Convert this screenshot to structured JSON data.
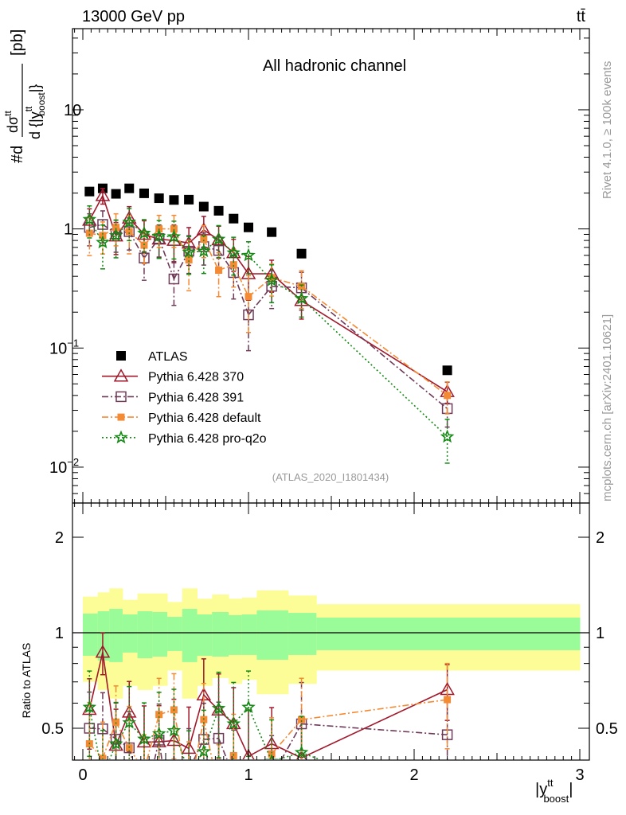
{
  "header": {
    "left": "13000 GeV pp",
    "right": "tt̄"
  },
  "side_labels": {
    "rivet": "Rivet 4.1.0, ≥ 100k events",
    "mcplots": "mcplots.cern.ch [arXiv:2401.10621]"
  },
  "chart_data": {
    "type": "scatter",
    "title": "All hadronic channel",
    "analysis": "(ATLAS_2020_I1801434)",
    "ylabel": {
      "prefix": "#d",
      "num": "dσ",
      "num_sup": "tt",
      "den": "d {|y",
      "den_sup": "tt",
      "den_sub": "boost",
      "den_end": "|}",
      "unit": "[pb]"
    },
    "xlabel": {
      "base": "|y",
      "sup": "tt",
      "sub": "boost",
      "end": "|"
    },
    "xlim": [
      -0.07,
      3.05
    ],
    "ylim": [
      0.005,
      48
    ],
    "yscale": "log",
    "xticks": [
      "0",
      "1",
      "2",
      "3"
    ],
    "yticks": [
      {
        "v": 0.01,
        "base": "10",
        "exp": "−2"
      },
      {
        "v": 0.1,
        "base": "10",
        "exp": "−1"
      },
      {
        "v": 1,
        "base": "1",
        "exp": ""
      },
      {
        "v": 10,
        "base": "10",
        "exp": ""
      }
    ],
    "bin_edges": [
      0,
      0.09,
      0.16,
      0.24,
      0.33,
      0.42,
      0.51,
      0.6,
      0.69,
      0.78,
      0.88,
      0.96,
      1.05,
      1.24,
      1.41,
      3.0
    ],
    "x": [
      0.04,
      0.12,
      0.2,
      0.28,
      0.37,
      0.46,
      0.55,
      0.64,
      0.73,
      0.82,
      0.91,
      1.0,
      1.14,
      1.32,
      2.2
    ],
    "series": [
      {
        "name": "ATLAS",
        "color": "#000000",
        "marker": "square-filled",
        "line": "none",
        "values": [
          2.06,
          2.19,
          1.97,
          2.19,
          1.99,
          1.81,
          1.75,
          1.76,
          1.54,
          1.42,
          1.22,
          1.03,
          0.94,
          0.62,
          0.065
        ]
      },
      {
        "name": "Pythia 6.428 370",
        "color": "#a0182a",
        "marker": "triangle-open",
        "line": "solid",
        "values": [
          1.18,
          1.9,
          0.87,
          1.23,
          0.9,
          0.82,
          0.8,
          0.76,
          0.98,
          0.81,
          0.63,
          0.42,
          0.42,
          0.25,
          0.043
        ],
        "rel_err": [
          0.25,
          0.15,
          0.3,
          0.25,
          0.3,
          0.3,
          0.35,
          0.35,
          0.3,
          0.3,
          0.3,
          0.4,
          0.3,
          0.3,
          0.2
        ]
      },
      {
        "name": "Pythia 6.428 391",
        "color": "#6e3a58",
        "marker": "square-open",
        "line": "dashdot",
        "values": [
          1.03,
          1.09,
          0.91,
          0.95,
          0.57,
          0.83,
          0.38,
          0.65,
          0.71,
          0.66,
          0.43,
          0.19,
          0.33,
          0.32,
          0.031
        ],
        "rel_err": [
          0.3,
          0.3,
          0.3,
          0.3,
          0.35,
          0.3,
          0.4,
          0.35,
          0.3,
          0.3,
          0.4,
          0.5,
          0.35,
          0.35,
          0.3
        ]
      },
      {
        "name": "Pythia 6.428 default",
        "color": "#f58a34",
        "marker": "square-filled-small",
        "line": "dashdot",
        "values": [
          0.92,
          0.88,
          1.03,
          0.95,
          0.73,
          1.0,
          1.0,
          0.55,
          0.82,
          0.45,
          0.5,
          0.27,
          0.39,
          0.33,
          0.04
        ],
        "rel_err": [
          0.35,
          0.3,
          0.3,
          0.35,
          0.3,
          0.3,
          0.3,
          0.45,
          0.3,
          0.4,
          0.35,
          0.5,
          0.3,
          0.35,
          0.3
        ]
      },
      {
        "name": "Pythia 6.428 pro-q2o",
        "color": "#138a13",
        "marker": "star",
        "line": "dotted",
        "values": [
          1.2,
          0.77,
          0.88,
          1.14,
          0.92,
          0.87,
          0.86,
          0.64,
          0.65,
          0.82,
          0.63,
          0.6,
          0.37,
          0.26,
          0.018
        ],
        "rel_err": [
          0.3,
          0.4,
          0.35,
          0.3,
          0.3,
          0.35,
          0.35,
          0.35,
          0.35,
          0.3,
          0.35,
          0.3,
          0.35,
          0.3,
          0.4
        ]
      }
    ],
    "ratio": {
      "ylabel": "Ratio to ATLAS",
      "ylim": [
        0.4,
        2.5
      ],
      "yticks": [
        {
          "v": 2,
          "label": "2"
        },
        {
          "v": 1,
          "label": "1"
        },
        {
          "v": 0.5,
          "label": "0.5"
        }
      ],
      "band_total_up": [
        1.3,
        1.34,
        1.38,
        1.27,
        1.33,
        1.33,
        1.25,
        1.38,
        1.28,
        1.32,
        1.28,
        1.29,
        1.36,
        1.31,
        1.23
      ],
      "band_total_down": [
        0.7,
        0.66,
        0.62,
        0.68,
        0.66,
        0.68,
        0.76,
        0.62,
        0.68,
        0.72,
        0.69,
        0.71,
        0.64,
        0.69,
        0.76
      ],
      "band_stat_up": [
        1.149,
        1.169,
        1.189,
        1.142,
        1.169,
        1.162,
        1.122,
        1.189,
        1.142,
        1.162,
        1.136,
        1.142,
        1.176,
        1.155,
        1.116
      ],
      "band_stat_down": [
        0.846,
        0.817,
        0.808,
        0.866,
        0.831,
        0.841,
        0.876,
        0.808,
        0.846,
        0.841,
        0.851,
        0.851,
        0.822,
        0.851,
        0.881
      ],
      "band_colors": {
        "total": "#fdfd98",
        "stat": "#99fc99"
      }
    }
  }
}
